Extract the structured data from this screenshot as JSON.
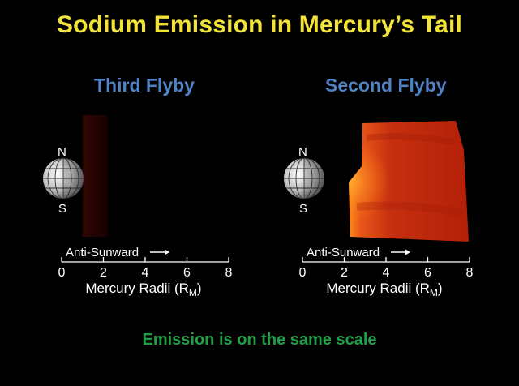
{
  "title": "Sodium Emission in Mercury’s Tail",
  "footer_note": "Emission is on the same scale",
  "colors": {
    "title": "#f3e237",
    "panel_title": "#4f83c6",
    "footer": "#20a046",
    "background": "#000000"
  },
  "chart_data": [
    {
      "type": "heatmap",
      "title": "Third Flyby",
      "planet_labels": {
        "north": "N",
        "south": "S"
      },
      "direction_label": "Anti-Sunward",
      "xlabel": "Mercury Radii (R",
      "xlabel_subscript": "M",
      "xlabel_suffix": ")",
      "ticks": [
        0,
        2,
        4,
        6,
        8
      ],
      "xlim": [
        0,
        8
      ],
      "emission": {
        "x_extent": [
          1,
          2.2
        ],
        "relative_intensity": 0.06
      }
    },
    {
      "type": "heatmap",
      "title": "Second Flyby",
      "planet_labels": {
        "north": "N",
        "south": "S"
      },
      "direction_label": "Anti-Sunward",
      "xlabel": "Mercury Radii (R",
      "xlabel_subscript": "M",
      "xlabel_suffix": ")",
      "ticks": [
        0,
        2,
        4,
        6,
        8
      ],
      "xlim": [
        0,
        8
      ],
      "emission": {
        "x_extent": [
          2,
          8
        ],
        "relative_intensity": 1.0
      }
    }
  ]
}
